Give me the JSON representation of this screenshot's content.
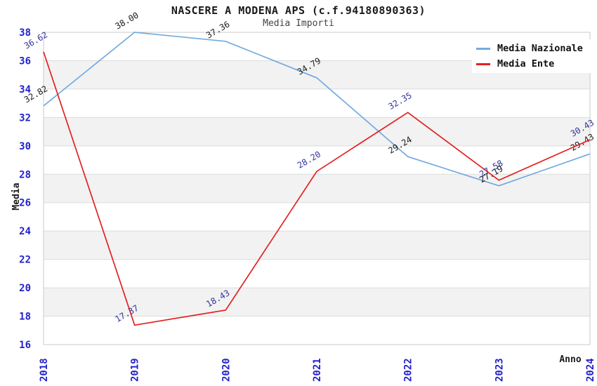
{
  "title": "NASCERE A MODENA APS (c.f.94180890363)",
  "subtitle": "Media Importi",
  "axis": {
    "y_label": "Media",
    "x_label": "Anno"
  },
  "legend": [
    {
      "label": "Media Nazionale",
      "color": "#74AAE0"
    },
    {
      "label": "Media Ente",
      "color": "#E22222"
    }
  ],
  "chart_data": {
    "type": "line",
    "x": [
      "2018",
      "2019",
      "2020",
      "2021",
      "2022",
      "2023",
      "2024"
    ],
    "series": [
      {
        "name": "Media Nazionale",
        "color": "#74AAE0",
        "label_color": "#1A1A1A",
        "values": [
          32.82,
          38.0,
          37.36,
          34.79,
          29.24,
          27.19,
          29.43
        ]
      },
      {
        "name": "Media Ente",
        "color": "#E22222",
        "label_color": "#333399",
        "values": [
          36.62,
          17.37,
          18.43,
          28.2,
          32.35,
          27.58,
          30.43
        ]
      }
    ],
    "ylim": [
      16,
      38
    ],
    "ytick_step": 2,
    "xlabel": "Anno",
    "ylabel": "Media",
    "grid": "horizontal-bands",
    "legend_position": "top-right",
    "point_label_decimals": 2
  },
  "colors": {
    "tick": "#2222CC",
    "grid": "#DCDCDC",
    "band": "#F2F2F2",
    "frame": "#C9C9C9",
    "title": "#1A1A1A",
    "subtitle": "#444444",
    "background": "#FFFFFF"
  }
}
